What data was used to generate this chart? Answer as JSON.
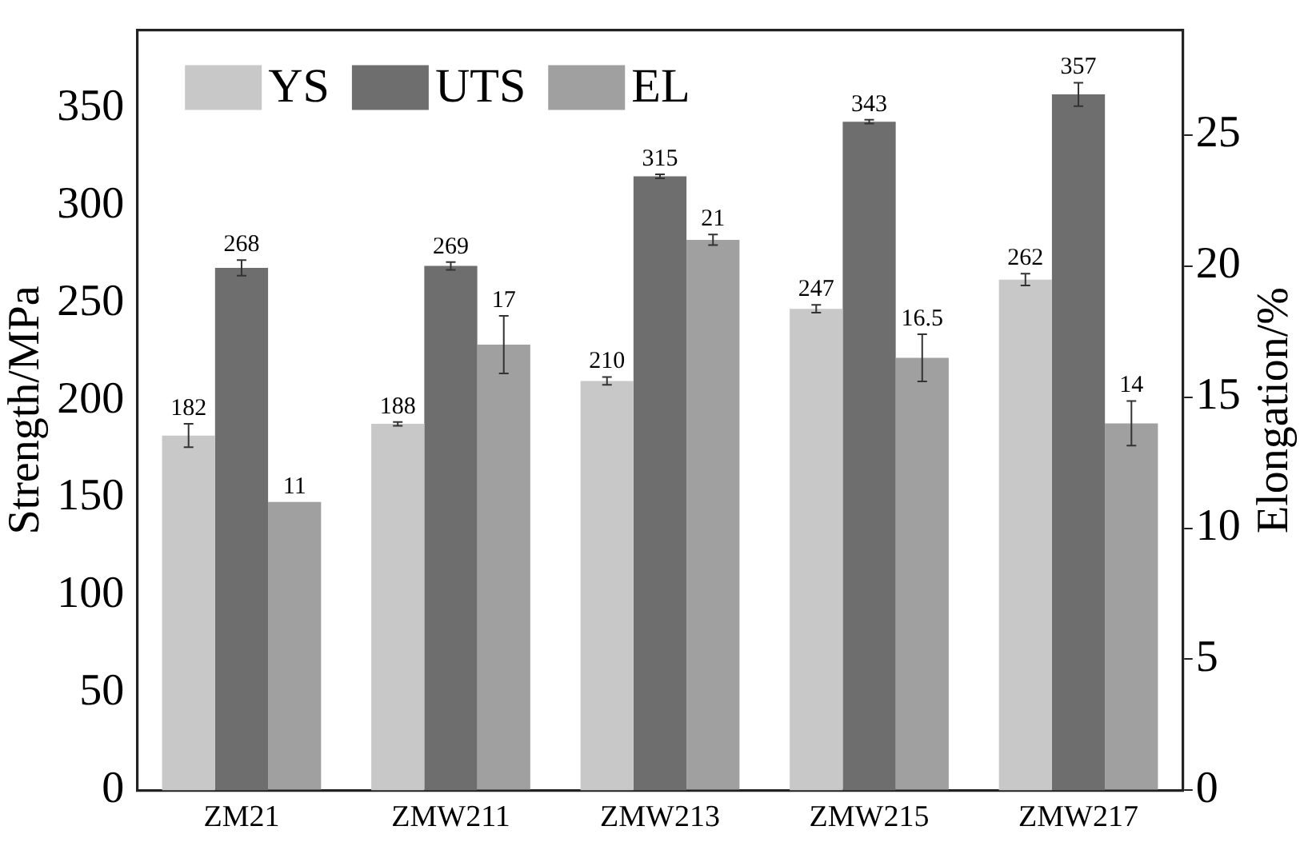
{
  "chart_data": {
    "type": "bar",
    "ylabel": "Strength/MPa",
    "y2label": "Elongation/%",
    "categories": [
      "ZM21",
      "ZMW211",
      "ZMW213",
      "ZMW215",
      "ZMW217"
    ],
    "series": [
      {
        "name": "YS",
        "color": "#c8c8c8",
        "values": [
          182,
          188,
          210,
          247,
          262
        ],
        "errors": [
          6,
          1,
          2,
          2,
          3
        ]
      },
      {
        "name": "UTS",
        "color": "#6e6e6e",
        "values": [
          268,
          269,
          315,
          343,
          357
        ],
        "errors": [
          4,
          2,
          1,
          1,
          6
        ]
      },
      {
        "name": "EL",
        "color": "#a0a0a0",
        "axis": "y2",
        "values": [
          11,
          17,
          21,
          16.5,
          14
        ],
        "errors": [
          null,
          1.1,
          0.2,
          0.9,
          0.85
        ]
      }
    ],
    "ylim": [
      0,
      390
    ],
    "yticks": [
      0,
      50,
      100,
      150,
      200,
      250,
      300,
      350
    ],
    "y2lim": [
      0,
      29
    ],
    "y2ticks": [
      0,
      5,
      10,
      15,
      20,
      25
    ],
    "data_labels": true,
    "legend": "top left",
    "grid": false
  }
}
